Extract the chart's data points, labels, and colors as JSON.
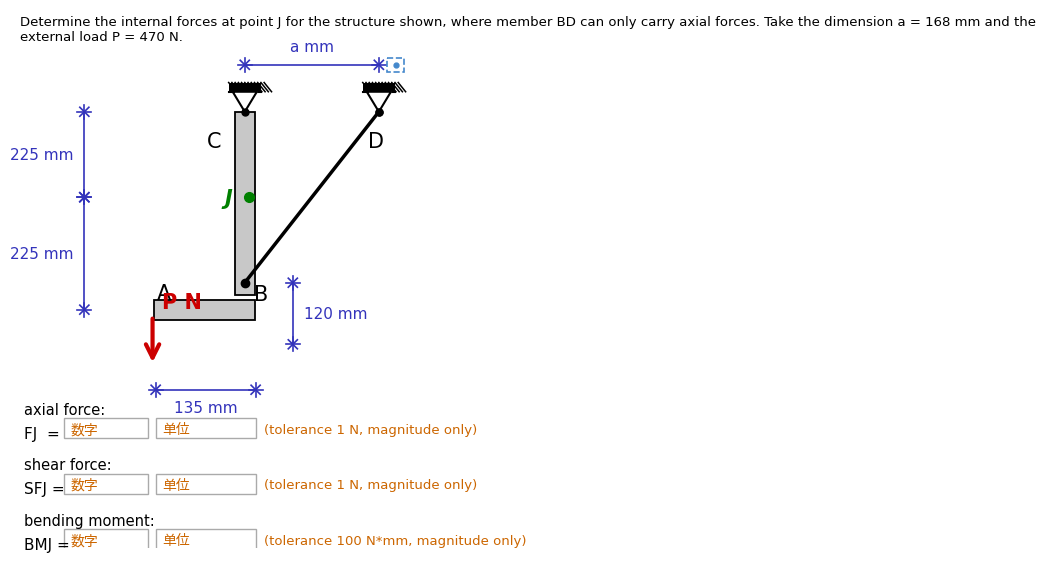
{
  "title_text": "Determine the internal forces at point J for the structure shown, where member BD can only carry axial forces. Take the dimension a = 168 mm and the\nexternal load P = 470 N.",
  "title_color": "#000000",
  "title_fontsize": 9.5,
  "dim_color": "#3333bb",
  "dim_a_label": "a mm",
  "dim_225_top": "225 mm",
  "dim_225_bot": "225 mm",
  "dim_120": "120 mm",
  "dim_135": "135 mm",
  "label_C": "C",
  "label_D": "D",
  "label_J": "J",
  "label_B": "B",
  "label_A": "A",
  "load_label": "P N",
  "load_color": "#cc0000",
  "green_color": "#008000",
  "struct_color": "#c8c8c8",
  "struct_outline": "#000000",
  "answer_label1": "axial force:",
  "answer_label2": "shear force:",
  "answer_label3": "bending moment:",
  "fj_label": "FJ  =",
  "sfj_label": "SFJ =",
  "bmj_label": "BMJ =",
  "placeholder_num": "数字",
  "placeholder_unit": "单位",
  "tol1": "(tolerance 1 N, magnitude only)",
  "tol2": "(tolerance 1 N, magnitude only)",
  "tol3": "(tolerance 100 N*mm, magnitude only)",
  "tol_color": "#cc6600",
  "placeholder_color": "#cc6600"
}
